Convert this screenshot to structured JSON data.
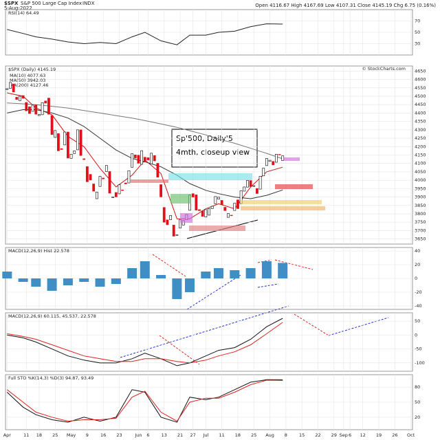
{
  "header": {
    "symbol": "$SPX",
    "name": "S&P 500 Large Cap Index",
    "exchange": "INDX",
    "date": "5-Aug-2022",
    "quote": "Open 4116.67  High 4167.69  Low 4107.31  Close 4145.19  Chg 6.75 (0.16%)",
    "watermark": "© StockCharts.com"
  },
  "chart_data": [
    {
      "type": "candlestick",
      "title": "$SPX (Daily) 4145.19",
      "annotation": [
        "Sp'500, Daily'5",
        "4mth, closeup view"
      ],
      "up_color": "#ffffff",
      "down_color": "#e0101a",
      "grid": true,
      "categories": [
        "Apr 1",
        "Apr 4",
        "Apr 5",
        "Apr 6",
        "Apr 7",
        "Apr 8",
        "Apr 11",
        "Apr 12",
        "Apr 13",
        "Apr 14",
        "Apr 18",
        "Apr 19",
        "Apr 20",
        "Apr 21",
        "Apr 22",
        "Apr 25",
        "Apr 26",
        "Apr 27",
        "Apr 28",
        "Apr 29",
        "May 2",
        "May 3",
        "May 4",
        "May 5",
        "May 6",
        "May 9",
        "May 10",
        "May 11",
        "May 12",
        "May 13",
        "May 16",
        "May 17",
        "May 18",
        "May 19",
        "May 20",
        "May 23",
        "May 24",
        "May 25",
        "May 26",
        "May 27",
        "May 31",
        "Jun 1",
        "Jun 2",
        "Jun 3",
        "Jun 6",
        "Jun 7",
        "Jun 8",
        "Jun 9",
        "Jun 10",
        "Jun 13",
        "Jun 14",
        "Jun 15",
        "Jun 16",
        "Jun 17",
        "Jun 21",
        "Jun 22",
        "Jun 23",
        "Jun 24",
        "Jun 27",
        "Jun 28",
        "Jun 29",
        "Jun 30",
        "Jul 1",
        "Jul 5",
        "Jul 6",
        "Jul 7",
        "Jul 8",
        "Jul 11",
        "Jul 12",
        "Jul 13",
        "Jul 14",
        "Jul 15",
        "Jul 18",
        "Jul 19",
        "Jul 20",
        "Jul 21",
        "Jul 22",
        "Jul 25",
        "Jul 26",
        "Jul 27",
        "Jul 28",
        "Jul 29",
        "Aug 1",
        "Aug 2",
        "Aug 3",
        "Aug 4",
        "Aug 5",
        "Aug 8",
        "Aug 9",
        "Aug 10",
        "Aug 11",
        "Aug 12",
        "Aug 15",
        "Aug 16",
        "Aug 17",
        "Aug 18",
        "Aug 19",
        "Aug 22",
        "Aug 23",
        "Aug 24",
        "Aug 25",
        "Aug 26",
        "Aug 29",
        "Aug 30",
        "Aug 31",
        "Sep 1",
        "Sep 2",
        "Sep 6",
        "Sep 7",
        "Sep 8",
        "Sep 9",
        "Sep 12",
        "Sep 13",
        "Sep 14",
        "Sep 15",
        "Sep 16",
        "Sep 19",
        "Sep 20",
        "Sep 21",
        "Sep 22",
        "Sep 23",
        "Sep 26",
        "Sep 27",
        "Sep 28",
        "Sep 29",
        "Sep 30",
        "Oct 3"
      ],
      "open": [
        4540,
        4547,
        4572,
        4494,
        4474,
        4504,
        4463,
        4437,
        4410,
        4449,
        4385,
        4390,
        4472,
        4489,
        4385,
        4255,
        4278,
        4188,
        4210,
        4287,
        4130,
        4159,
        4181,
        4300,
        4128,
        4081,
        4035,
        3978,
        3890,
        3963,
        4013,
        4052,
        4052,
        3900,
        3927,
        3919,
        3942,
        3984,
        3984,
        4077,
        4151,
        4149,
        4095,
        4137,
        4134,
        4097,
        4147,
        4101,
        3974,
        3838,
        3764,
        3765,
        3733,
        3674,
        3715,
        3733,
        3765,
        3821,
        3920,
        3913,
        3825,
        3818,
        3781,
        3792,
        3831,
        3860,
        3888,
        3880,
        3839,
        3779,
        3792,
        3820,
        3883,
        3860,
        3935,
        3959,
        3998,
        3965,
        3951,
        3947,
        4026,
        4087,
        4112,
        4112,
        4107,
        4154,
        4116.67,
        null,
        null,
        null,
        null,
        null,
        null,
        null,
        null,
        null,
        null,
        null,
        null,
        null,
        null,
        null,
        null,
        null,
        null,
        null,
        null,
        null,
        null,
        null,
        null,
        null,
        null,
        null,
        null,
        null,
        null,
        null,
        null,
        null,
        null,
        null,
        null,
        null,
        null,
        null,
        null
      ],
      "close": [
        4545,
        4582,
        4525,
        4481,
        4500,
        4488,
        4413,
        4397,
        4447,
        4393,
        4391,
        4462,
        4459,
        4393,
        4272,
        4296,
        4175,
        4183,
        4287,
        4132,
        4155,
        4175,
        4300,
        4147,
        4123,
        3991,
        4001,
        3935,
        3930,
        4023,
        4008,
        4088,
        3923,
        3900,
        3901,
        3973,
        3941,
        3978,
        4057,
        4158,
        4132,
        4101,
        4176,
        4108,
        4121,
        4161,
        4115,
        4018,
        3901,
        3750,
        3735,
        3790,
        3667,
        3675,
        3765,
        3760,
        3796,
        3912,
        3900,
        3822,
        3819,
        3785,
        3825,
        3831,
        3845,
        3903,
        3899,
        3854,
        3819,
        3802,
        3790,
        3863,
        3831,
        3937,
        3960,
        3999,
        3962,
        3967,
        3921,
        4024,
        4072,
        4130,
        4119,
        4091,
        4155,
        4152,
        4145.19,
        null,
        null,
        null,
        null,
        null,
        null,
        null,
        null,
        null,
        null,
        null,
        null,
        null,
        null,
        null,
        null,
        null,
        null,
        null,
        null,
        null,
        null,
        null,
        null,
        null,
        null,
        null,
        null,
        null,
        null,
        null,
        null,
        null,
        null,
        null,
        null,
        null,
        null,
        null,
        null
      ],
      "series": [
        {
          "name": "MA(10) 4077.63",
          "color": "#d01010",
          "x": [
            "Apr 1",
            "Apr 8",
            "Apr 14",
            "Apr 22",
            "Apr 29",
            "May 6",
            "May 13",
            "May 20",
            "May 27",
            "Jun 3",
            "Jun 10",
            "Jun 17",
            "Jun 24",
            "Jul 1",
            "Jul 8",
            "Jul 15",
            "Jul 22",
            "Jul 29",
            "Aug 5"
          ],
          "values": [
            4520,
            4500,
            4430,
            4390,
            4260,
            4200,
            4070,
            3960,
            4030,
            4120,
            4040,
            3770,
            3770,
            3830,
            3860,
            3830,
            3960,
            4050,
            4077.63
          ]
        },
        {
          "name": "MA(50) 3942.03",
          "color": "#333333",
          "x": [
            "Apr 1",
            "Apr 8",
            "Apr 14",
            "Apr 22",
            "Apr 29",
            "May 6",
            "May 13",
            "May 20",
            "May 27",
            "Jun 3",
            "Jun 10",
            "Jun 17",
            "Jun 24",
            "Jul 1",
            "Jul 8",
            "Jul 15",
            "Jul 22",
            "Jul 29",
            "Aug 5"
          ],
          "values": [
            4400,
            4420,
            4420,
            4400,
            4370,
            4320,
            4250,
            4180,
            4130,
            4110,
            4080,
            4030,
            3980,
            3940,
            3920,
            3900,
            3890,
            3910,
            3942.03
          ]
        },
        {
          "name": "MA(200) 4127.46",
          "color": "#777777",
          "x": [
            "Apr 1",
            "Apr 8",
            "Apr 14",
            "Apr 22",
            "Apr 29",
            "May 6",
            "May 13",
            "May 20",
            "May 27",
            "Jun 3",
            "Jun 10",
            "Jun 17",
            "Jun 24",
            "Jul 1",
            "Jul 8",
            "Jul 15",
            "Jul 22",
            "Jul 29",
            "Aug 5"
          ],
          "values": [
            4460,
            4455,
            4450,
            4440,
            4430,
            4415,
            4400,
            4385,
            4370,
            4355,
            4335,
            4315,
            4295,
            4270,
            4245,
            4220,
            4190,
            4160,
            4127.46
          ]
        }
      ],
      "ylim": [
        3620,
        4680
      ],
      "yticks": [
        3650,
        3700,
        3750,
        3800,
        3850,
        3900,
        3950,
        4000,
        4050,
        4100,
        4150,
        4200,
        4250,
        4300,
        4350,
        4400,
        4450,
        4500,
        4550,
        4600,
        4650
      ],
      "xticks": [
        {
          "value": "Apr 1",
          "label": "Apr"
        },
        {
          "value": "Apr 11",
          "label": "11"
        },
        {
          "value": "Apr 18",
          "label": "18"
        },
        {
          "value": "Apr 25",
          "label": "25"
        },
        {
          "value": "May 2",
          "label": "May"
        },
        {
          "value": "May 9",
          "label": "9"
        },
        {
          "value": "May 16",
          "label": "16"
        },
        {
          "value": "May 23",
          "label": "23"
        },
        {
          "value": "Jun 1",
          "label": "Jun"
        },
        {
          "value": "Jun 6",
          "label": "6"
        },
        {
          "value": "Jun 13",
          "label": "13"
        },
        {
          "value": "Jun 21",
          "label": "21"
        },
        {
          "value": "Jun 27",
          "label": "27"
        },
        {
          "value": "Jul 1",
          "label": "Jul"
        },
        {
          "value": "Jul 11",
          "label": "11"
        },
        {
          "value": "Jul 18",
          "label": "18"
        },
        {
          "value": "Jul 25",
          "label": "25"
        },
        {
          "value": "Aug 1",
          "label": "Aug"
        },
        {
          "value": "Aug 8",
          "label": "8"
        },
        {
          "value": "Aug 15",
          "label": "15"
        },
        {
          "value": "Aug 22",
          "label": "22"
        },
        {
          "value": "Aug 29",
          "label": "29"
        },
        {
          "value": "Sep 1",
          "label": "Sep"
        },
        {
          "value": "Sep 6",
          "label": "6"
        },
        {
          "value": "Sep 12",
          "label": "12"
        },
        {
          "value": "Sep 19",
          "label": "19"
        },
        {
          "value": "Sep 26",
          "label": "26"
        },
        {
          "value": "Oct 3",
          "label": "Oct"
        }
      ]
    },
    {
      "type": "line",
      "title": "RSI(14) 64.49",
      "x": [
        "Apr 1",
        "Apr 8",
        "Apr 14",
        "Apr 22",
        "Apr 29",
        "May 6",
        "May 13",
        "May 20",
        "May 27",
        "Jun 3",
        "Jun 10",
        "Jun 17",
        "Jun 24",
        "Jul 1",
        "Jul 8",
        "Jul 15",
        "Jul 22",
        "Jul 29",
        "Aug 5"
      ],
      "series": [
        {
          "name": "RSI(14)",
          "color": "#222222",
          "values": [
            55,
            48,
            42,
            38,
            33,
            30,
            32,
            30,
            42,
            50,
            35,
            28,
            45,
            45,
            50,
            52,
            60,
            65,
            64.49
          ]
        }
      ],
      "ylim": [
        10,
        90
      ],
      "yticks": [
        30,
        50,
        70
      ]
    },
    {
      "type": "bar",
      "title": "MACD(12,26,9) Hist 22.578",
      "x": [
        "Apr 1",
        "Apr 8",
        "Apr 14",
        "Apr 22",
        "Apr 29",
        "May 6",
        "May 13",
        "May 20",
        "May 27",
        "Jun 3",
        "Jun 10",
        "Jun 17",
        "Jun 24",
        "Jul 1",
        "Jul 8",
        "Jul 15",
        "Jul 22",
        "Jul 29",
        "Aug 5"
      ],
      "color": "#3f8fc4",
      "values": [
        10,
        -5,
        -12,
        -18,
        -10,
        -5,
        -12,
        -8,
        15,
        25,
        5,
        -30,
        -20,
        10,
        15,
        12,
        15,
        25,
        22.578
      ],
      "ylim": [
        -45,
        45
      ],
      "yticks": [
        -40,
        -20,
        0,
        20,
        40
      ]
    },
    {
      "type": "line",
      "title": "MACD(12,26,9) 60.115, 45.537, 22.578",
      "x": [
        "Apr 1",
        "Apr 8",
        "Apr 14",
        "Apr 22",
        "Apr 29",
        "May 6",
        "May 13",
        "May 20",
        "May 27",
        "Jun 3",
        "Jun 10",
        "Jun 17",
        "Jun 24",
        "Jul 1",
        "Jul 8",
        "Jul 15",
        "Jul 22",
        "Jul 29",
        "Aug 5"
      ],
      "series": [
        {
          "name": "MACD",
          "color": "#111111",
          "values": [
            0,
            -10,
            -25,
            -50,
            -75,
            -90,
            -100,
            -100,
            -85,
            -65,
            -85,
            -110,
            -100,
            -75,
            -55,
            -45,
            -15,
            30,
            60.115
          ]
        },
        {
          "name": "Signal",
          "color": "#e02020",
          "values": [
            5,
            -5,
            -15,
            -35,
            -55,
            -75,
            -85,
            -95,
            -95,
            -85,
            -85,
            -95,
            -100,
            -90,
            -75,
            -60,
            -35,
            5,
            45.537
          ]
        }
      ],
      "ylim": [
        -130,
        80
      ],
      "yticks": [
        -100,
        -50,
        0,
        50
      ]
    },
    {
      "type": "line",
      "title": "Full STO %K(14,3) %D(3) 94.87, 93.49",
      "x": [
        "Apr 1",
        "Apr 8",
        "Apr 14",
        "Apr 22",
        "Apr 29",
        "May 6",
        "May 13",
        "May 20",
        "May 27",
        "Jun 3",
        "Jun 10",
        "Jun 17",
        "Jun 24",
        "Jul 1",
        "Jul 8",
        "Jul 15",
        "Jul 22",
        "Jul 29",
        "Aug 5"
      ],
      "series": [
        {
          "name": "%K",
          "color": "#111111",
          "values": [
            70,
            40,
            25,
            15,
            10,
            20,
            12,
            20,
            75,
            70,
            20,
            10,
            60,
            55,
            60,
            75,
            90,
            95,
            94.87
          ]
        },
        {
          "name": "%D",
          "color": "#e02020",
          "values": [
            75,
            50,
            30,
            20,
            12,
            15,
            15,
            18,
            60,
            72,
            30,
            12,
            50,
            58,
            58,
            70,
            85,
            94,
            93.49
          ]
        }
      ],
      "ylim": [
        -5,
        105
      ],
      "yticks": [
        20,
        50,
        80
      ]
    }
  ]
}
